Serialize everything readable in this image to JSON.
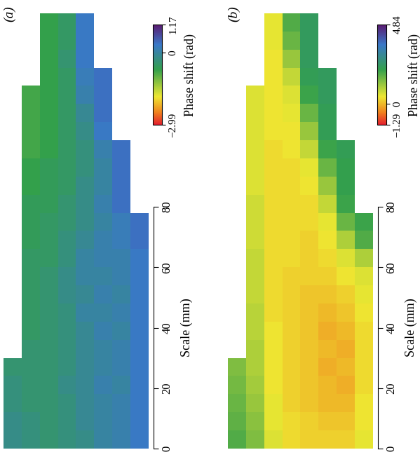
{
  "chart_data": [
    {
      "type": "heatmap",
      "title": "(a)",
      "cell_size": 6,
      "cells": [
        [
          null,
          null,
          -0.7,
          -0.5,
          0.3,
          null,
          null,
          null
        ],
        [
          null,
          null,
          -0.7,
          -0.5,
          0.3,
          null,
          null,
          null
        ],
        [
          null,
          null,
          -0.7,
          -0.4,
          0.3,
          null,
          null,
          null
        ],
        [
          null,
          null,
          -0.7,
          -0.5,
          0.2,
          0.4,
          null,
          null
        ],
        [
          null,
          -0.8,
          -0.7,
          -0.5,
          0.1,
          0.4,
          null,
          null
        ],
        [
          null,
          -0.8,
          -0.7,
          -0.5,
          -0.1,
          0.4,
          null,
          null
        ],
        [
          null,
          -0.8,
          -0.7,
          -0.5,
          -0.2,
          0.3,
          null,
          null
        ],
        [
          null,
          -0.8,
          -0.7,
          -0.5,
          -0.3,
          0.1,
          0.4,
          null
        ],
        [
          null,
          -0.7,
          -0.6,
          -0.5,
          -0.3,
          0.0,
          0.4,
          null
        ],
        [
          null,
          -0.7,
          -0.6,
          -0.5,
          -0.2,
          0.0,
          0.4,
          null
        ],
        [
          null,
          -0.6,
          -0.6,
          -0.4,
          -0.2,
          0.1,
          0.4,
          null
        ],
        [
          null,
          -0.6,
          -0.5,
          -0.4,
          -0.2,
          0.0,
          0.2,
          0.4
        ],
        [
          null,
          -0.6,
          -0.5,
          -0.3,
          -0.1,
          0.1,
          0.2,
          0.4
        ],
        [
          null,
          -0.5,
          -0.5,
          -0.3,
          0.0,
          0.1,
          0.1,
          0.3
        ],
        [
          null,
          -0.5,
          -0.4,
          -0.2,
          0.0,
          0.0,
          0.1,
          0.3
        ],
        [
          null,
          -0.5,
          -0.4,
          -0.2,
          -0.1,
          0.1,
          0.0,
          0.3
        ],
        [
          null,
          -0.5,
          -0.4,
          -0.3,
          0.0,
          0.0,
          0.1,
          0.3
        ],
        [
          null,
          -0.5,
          -0.4,
          -0.3,
          -0.1,
          0.1,
          0.0,
          0.3
        ],
        [
          null,
          -0.4,
          -0.4,
          -0.3,
          -0.1,
          0.0,
          0.1,
          0.3
        ],
        [
          -0.4,
          -0.4,
          -0.4,
          -0.3,
          -0.1,
          0.0,
          0.1,
          0.3
        ],
        [
          -0.3,
          -0.4,
          -0.4,
          -0.2,
          -0.1,
          0.1,
          0.0,
          0.3
        ],
        [
          -0.3,
          -0.4,
          -0.4,
          -0.3,
          -0.1,
          0.0,
          0.1,
          0.3
        ],
        [
          -0.2,
          -0.3,
          -0.4,
          -0.3,
          -0.1,
          0.0,
          0.1,
          0.3
        ],
        [
          -0.2,
          -0.3,
          -0.4,
          -0.3,
          -0.2,
          0.0,
          0.1,
          0.3
        ]
      ],
      "colorbar_label": "Phase shift (rad)",
      "colorbar_range": [
        -2.99,
        1.17
      ],
      "colorbar_ticks": [
        {
          "value": -2.99,
          "label": "−2.99"
        },
        0,
        1.17
      ],
      "ylabel": "Scale (mm)",
      "ylim": [
        0,
        80
      ],
      "yticks": [
        0,
        20,
        40,
        60,
        80
      ]
    },
    {
      "type": "heatmap",
      "title": "(b)",
      "cell_size": 6,
      "cells": [
        [
          null,
          null,
          0.5,
          1.8,
          2.3,
          null,
          null,
          null
        ],
        [
          null,
          null,
          0.5,
          1.6,
          2.3,
          null,
          null,
          null
        ],
        [
          null,
          null,
          0.4,
          1.2,
          2.3,
          null,
          null,
          null
        ],
        [
          null,
          null,
          0.4,
          0.8,
          2.2,
          2.3,
          null,
          null
        ],
        [
          null,
          0.6,
          0.4,
          0.6,
          2.0,
          2.3,
          null,
          null
        ],
        [
          null,
          0.6,
          0.4,
          0.5,
          1.6,
          2.2,
          null,
          null
        ],
        [
          null,
          0.6,
          0.4,
          0.4,
          1.2,
          2.2,
          null,
          null
        ],
        [
          null,
          0.6,
          0.3,
          0.4,
          0.8,
          2.0,
          2.2,
          null
        ],
        [
          null,
          0.6,
          0.3,
          0.3,
          0.5,
          1.6,
          2.1,
          null
        ],
        [
          null,
          0.6,
          0.3,
          0.3,
          0.4,
          1.2,
          2.1,
          null
        ],
        [
          null,
          0.7,
          0.3,
          0.3,
          0.3,
          0.8,
          2.0,
          null
        ],
        [
          null,
          0.7,
          0.3,
          0.3,
          0.3,
          0.5,
          1.6,
          2.0
        ],
        [
          null,
          0.7,
          0.3,
          0.3,
          0.2,
          0.4,
          1.0,
          1.8
        ],
        [
          null,
          0.8,
          0.3,
          0.3,
          0.2,
          0.3,
          0.6,
          1.0
        ],
        [
          null,
          0.8,
          0.3,
          0.2,
          0.2,
          0.2,
          0.4,
          0.6
        ],
        [
          null,
          0.8,
          0.3,
          0.2,
          0.1,
          0.1,
          0.2,
          0.5
        ],
        [
          null,
          0.9,
          0.3,
          0.2,
          0.1,
          0.0,
          0.1,
          0.4
        ],
        [
          null,
          0.9,
          0.4,
          0.2,
          0.1,
          -0.1,
          0.0,
          0.3
        ],
        [
          null,
          1.0,
          0.4,
          0.2,
          0.1,
          0.0,
          -0.1,
          0.3
        ],
        [
          1.4,
          1.0,
          0.4,
          0.2,
          0.1,
          -0.1,
          0.0,
          0.3
        ],
        [
          1.5,
          1.1,
          0.4,
          0.2,
          0.1,
          0.0,
          -0.1,
          0.3
        ],
        [
          1.6,
          1.2,
          0.5,
          0.2,
          0.1,
          0.0,
          0.0,
          0.4
        ],
        [
          1.7,
          1.3,
          0.5,
          0.3,
          0.2,
          0.1,
          0.1,
          0.4
        ],
        [
          1.8,
          1.4,
          0.6,
          0.3,
          0.2,
          0.2,
          0.2,
          0.5
        ]
      ],
      "colorbar_label": "Phase shift (rad)",
      "colorbar_range": [
        -1.29,
        4.84
      ],
      "colorbar_ticks": [
        {
          "value": -1.29,
          "label": "−1.29"
        },
        0,
        4.84
      ],
      "ylabel": "Scale (mm)",
      "ylim": [
        0,
        80
      ],
      "yticks": [
        0,
        20,
        40,
        60,
        80
      ]
    }
  ]
}
